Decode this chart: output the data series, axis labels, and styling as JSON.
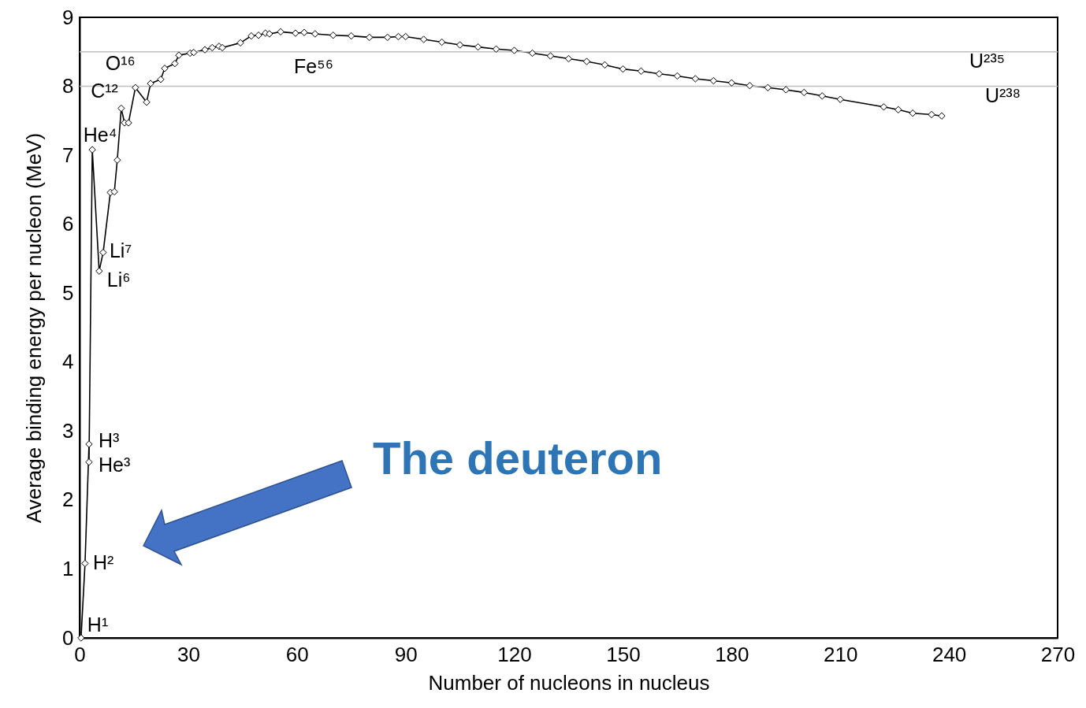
{
  "chart_data": {
    "type": "line",
    "xlabel": "Number of nucleons in nucleus",
    "ylabel": "Average binding energy per nucleon (MeV)",
    "x": [
      0.4,
      1.5,
      2.6,
      2.6,
      3.5,
      5.4,
      6.5,
      8.5,
      9.6,
      10.4,
      11.5,
      12.4,
      13.5,
      15.4,
      18.5,
      19.6,
      22.4,
      23.5,
      26.3,
      27.4,
      30.5,
      31.5,
      34.6,
      36.6,
      38.5,
      39.4,
      44.4,
      47.4,
      49.4,
      51.3,
      52.4,
      55.5,
      59.6,
      62,
      65,
      70,
      75,
      80,
      85,
      88,
      90,
      95,
      100,
      105,
      110,
      115,
      120,
      125,
      130,
      135,
      140,
      145,
      150,
      155,
      160,
      165,
      170,
      175,
      180,
      185,
      190,
      195,
      200,
      205,
      210,
      222,
      226,
      230,
      235.2,
      238
    ],
    "series": [
      {
        "color": "#000000",
        "values": [
          0,
          1.08,
          2.81,
          2.55,
          7.08,
          5.32,
          5.59,
          6.46,
          6.47,
          6.93,
          7.68,
          7.47,
          7.47,
          7.98,
          7.77,
          8.04,
          8.1,
          8.26,
          8.33,
          8.45,
          8.48,
          8.49,
          8.53,
          8.56,
          8.58,
          8.56,
          8.63,
          8.73,
          8.74,
          8.77,
          8.76,
          8.79,
          8.77,
          8.78,
          8.76,
          8.74,
          8.73,
          8.71,
          8.71,
          8.72,
          8.72,
          8.68,
          8.64,
          8.6,
          8.57,
          8.54,
          8.52,
          8.48,
          8.44,
          8.4,
          8.36,
          8.31,
          8.25,
          8.22,
          8.18,
          8.15,
          8.11,
          8.08,
          8.05,
          8.01,
          7.98,
          7.95,
          7.91,
          7.86,
          7.81,
          7.7,
          7.66,
          7.61,
          7.59,
          7.57
        ]
      }
    ],
    "xlim": [
      0,
      270
    ],
    "xticks": [
      0,
      30,
      60,
      90,
      120,
      150,
      180,
      210,
      240,
      270
    ],
    "ylim": [
      0,
      9
    ],
    "yticks": [
      0,
      1,
      2,
      3,
      4,
      5,
      6,
      7,
      8,
      9
    ],
    "marker": "diamond",
    "line_style": "solid",
    "grid": false,
    "ref_lines": [
      {
        "axis": "y",
        "value": 8,
        "color": "#bfbfbf"
      },
      {
        "axis": "y",
        "value": 8.5,
        "color": "#bfbfbf"
      }
    ],
    "annotations": [
      {
        "text": "H¹",
        "x": 0.4,
        "y": 0
      },
      {
        "text": "H²",
        "x": 1.5,
        "y": 1.08
      },
      {
        "text": "H³",
        "x": 2.6,
        "y": 2.81
      },
      {
        "text": "He³",
        "x": 2.6,
        "y": 2.55
      },
      {
        "text": "He⁴",
        "x": 3.5,
        "y": 7.08
      },
      {
        "text": "Li⁶",
        "x": 5.4,
        "y": 5.32
      },
      {
        "text": "Li⁷",
        "x": 6.5,
        "y": 5.59
      },
      {
        "text": "C¹²",
        "x": 11.5,
        "y": 7.68
      },
      {
        "text": "O¹⁶",
        "x": 15.4,
        "y": 7.98
      },
      {
        "text": "Fe⁵⁶",
        "x": 55.5,
        "y": 8.79
      },
      {
        "text": "U²³⁵",
        "x": 235.2,
        "y": 7.59
      },
      {
        "text": "U²³⁸",
        "x": 238,
        "y": 7.57
      },
      "The deuteron"
    ]
  }
}
